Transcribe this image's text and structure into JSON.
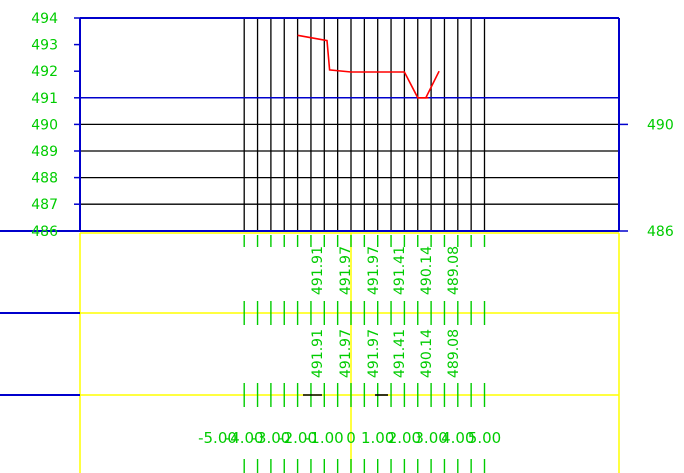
{
  "colors": {
    "frame": "#0000cc",
    "grid": "#000000",
    "profile": "#ff0000",
    "label": "#00cc00",
    "band": "#ffff00"
  },
  "chart_data": {
    "type": "line",
    "elevation_ticks": [
      "494",
      "493",
      "492",
      "491",
      "490",
      "489",
      "488",
      "487",
      "486"
    ],
    "right_labels": [
      "490",
      "486"
    ],
    "station_ticks": [
      "-5.00",
      "-4.00",
      "-3.00",
      "-2.00",
      "-1.00",
      "0",
      "1.00",
      "2.00",
      "3.00",
      "4.00",
      "5.00"
    ],
    "x_range": [
      -4,
      5
    ],
    "y_range": [
      486,
      494
    ],
    "profile": {
      "x": [
        -2.0,
        -0.9,
        -0.8,
        0.0,
        0.9,
        1.6,
        2.0,
        2.5,
        2.9
      ],
      "y": [
        493.35,
        493.15,
        492.05,
        491.97,
        491.97,
        491.97,
        491.97,
        491.0,
        491.0
      ]
    },
    "profile_tail": {
      "x": [
        2.5,
        2.8,
        3.3
      ],
      "y": [
        491.0,
        491.0,
        492.0
      ]
    },
    "band_upper_labels": [
      "491.91",
      "491.97",
      "491.97",
      "491.41",
      "490.14",
      "489.08"
    ],
    "band_lower_labels": [
      "491.91",
      "491.97",
      "491.97",
      "491.41",
      "490.14",
      "489.08"
    ]
  }
}
